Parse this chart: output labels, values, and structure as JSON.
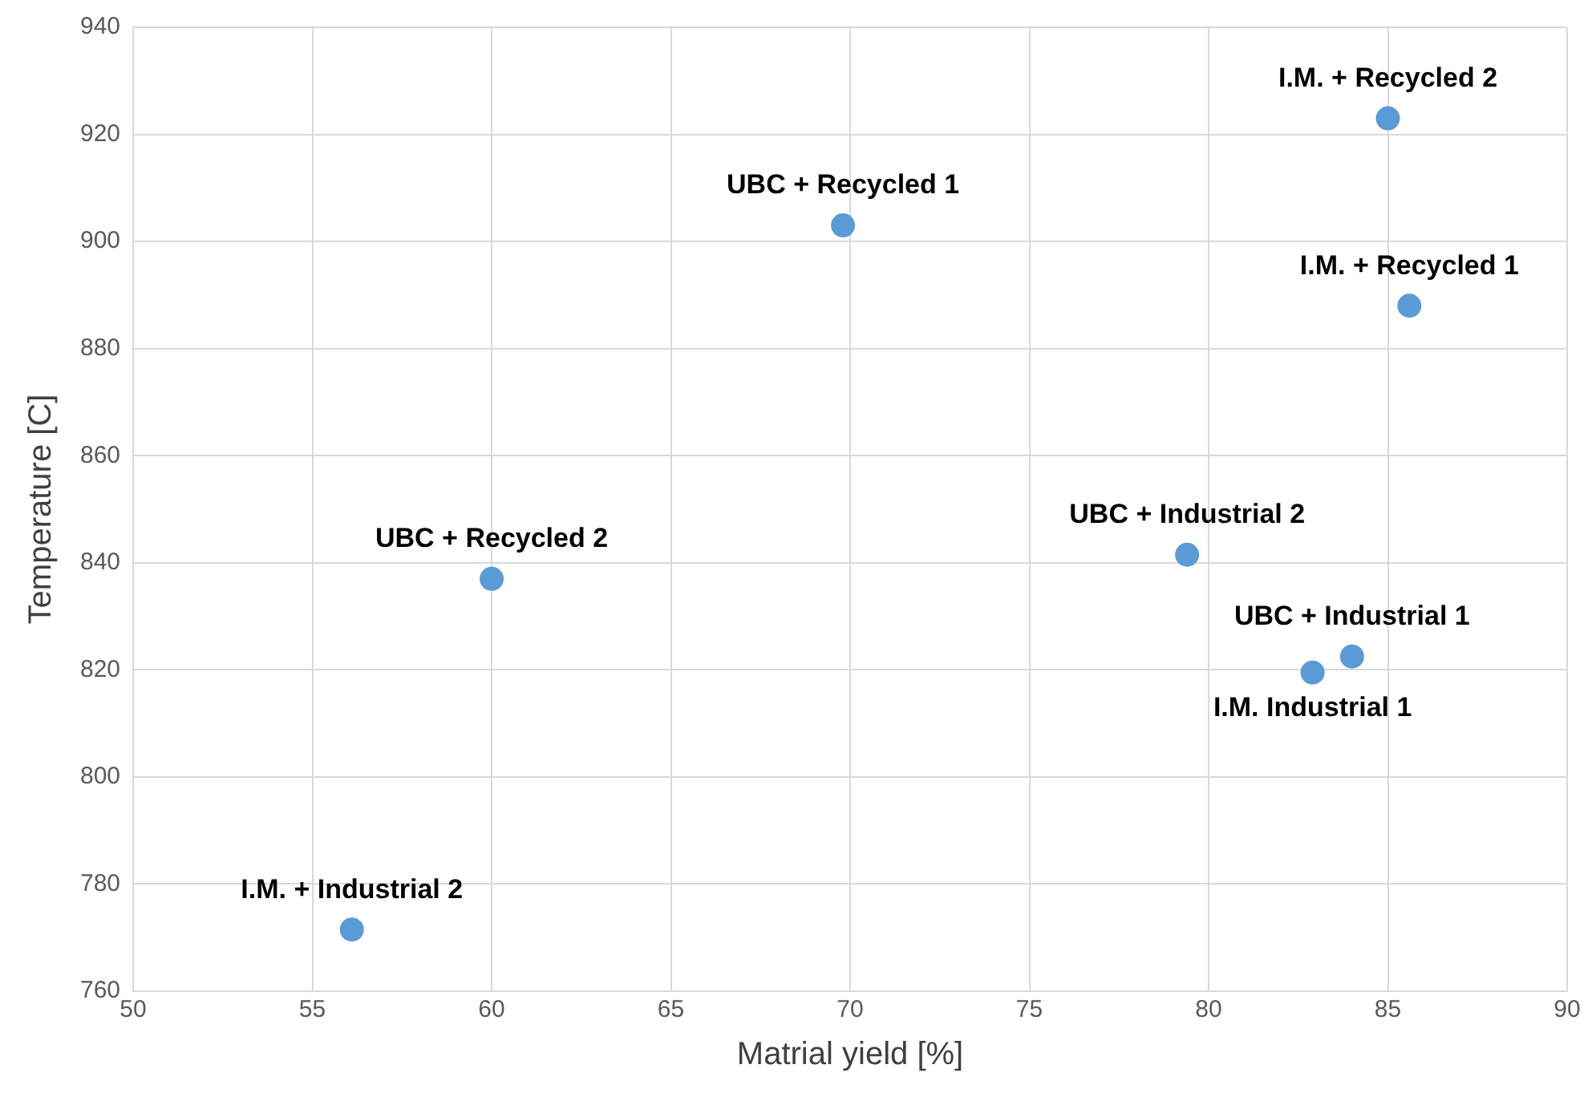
{
  "chart_data": {
    "type": "scatter",
    "xlabel": "Matrial yield [%]",
    "ylabel": "Temperature [C]",
    "series": [
      {
        "color": "#5b9bd5",
        "x": [
          69.8,
          85.0,
          85.6,
          60.0,
          79.4,
          84.0,
          82.9,
          56.1
        ],
        "values": [
          903,
          923,
          888,
          837,
          841.5,
          822.5,
          819.5,
          771.5
        ]
      }
    ],
    "xlim": [
      50,
      90
    ],
    "xticks": [
      50,
      55,
      60,
      65,
      70,
      75,
      80,
      85,
      90
    ],
    "ylim": [
      760,
      940
    ],
    "yticks": [
      760,
      780,
      800,
      820,
      840,
      860,
      880,
      900,
      920,
      940
    ],
    "grid": true,
    "legend": false,
    "marker": "circle",
    "annotations": [
      {
        "text": "UBC + Recycled 1",
        "x": 69.8,
        "y": 903
      },
      {
        "text": "I.M. + Recycled 2",
        "x": 85.0,
        "y": 923
      },
      {
        "text": "I.M. + Recycled 1",
        "x": 85.6,
        "y": 888
      },
      {
        "text": "UBC + Recycled 2",
        "x": 60.0,
        "y": 837
      },
      {
        "text": "UBC + Industrial 2",
        "x": 79.4,
        "y": 841.5
      },
      {
        "text": "UBC + Industrial 1",
        "x": 84.0,
        "y": 822.5
      },
      {
        "text": "I.M. Industrial 1",
        "x": 82.9,
        "y": 819.5
      },
      {
        "text": "I.M. + Industrial 2",
        "x": 56.1,
        "y": 771.5
      }
    ]
  }
}
